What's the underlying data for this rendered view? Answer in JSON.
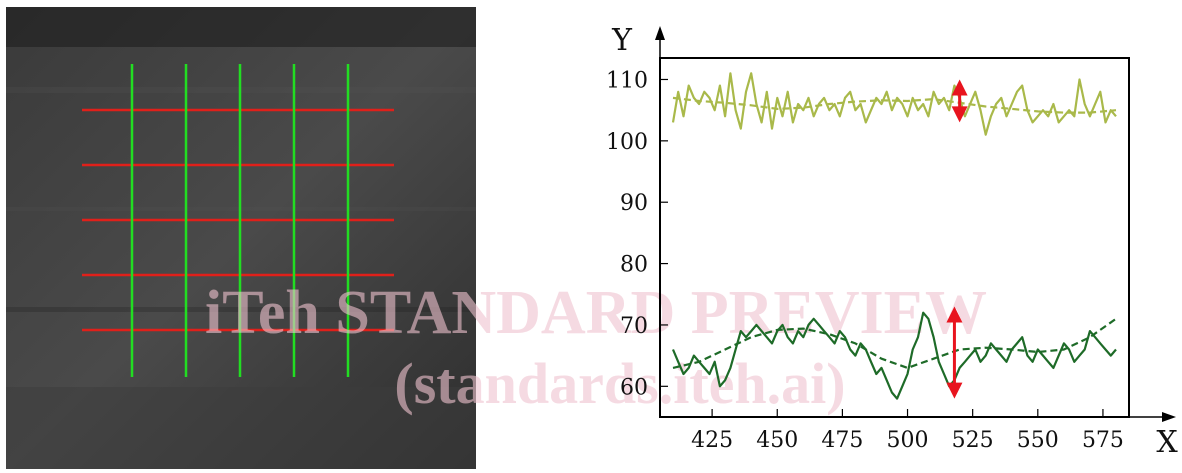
{
  "watermark": {
    "line1": "iTeh STANDARD PREVIEW",
    "line2": "(standards.iteh.ai)"
  },
  "photo": {
    "description_colors": {
      "background": "#2b2b2b",
      "horizontal_lines": "#e0201a",
      "vertical_lines": "#22dd22"
    },
    "horizontal_line_count": 5,
    "vertical_line_count": 5
  },
  "chart_data": {
    "type": "line",
    "xlabel": "X",
    "ylabel": "Y",
    "xlim": [
      405,
      585
    ],
    "ylim": [
      55,
      113.5
    ],
    "xticks": [
      425,
      450,
      475,
      500,
      525,
      550,
      575
    ],
    "yticks": [
      60,
      70,
      80,
      90,
      100,
      110
    ],
    "grid": false,
    "series": [
      {
        "color": "#a9b94a",
        "style": "solid",
        "x": [
          410,
          412,
          414,
          416,
          418,
          420,
          422,
          424,
          426,
          428,
          430,
          432,
          434,
          436,
          438,
          440,
          442,
          444,
          446,
          448,
          450,
          452,
          454,
          456,
          458,
          460,
          462,
          464,
          466,
          468,
          470,
          472,
          474,
          476,
          478,
          480,
          482,
          484,
          486,
          488,
          490,
          492,
          494,
          496,
          498,
          500,
          502,
          504,
          506,
          508,
          510,
          512,
          514,
          516,
          518,
          520,
          522,
          524,
          526,
          528,
          530,
          532,
          534,
          536,
          538,
          540,
          542,
          544,
          546,
          548,
          550,
          552,
          554,
          556,
          558,
          560,
          562,
          564,
          566,
          568,
          570,
          572,
          574,
          576,
          578,
          580
        ],
        "y": [
          103,
          108,
          104,
          109,
          107,
          106,
          108,
          107,
          105,
          109,
          104,
          111,
          105,
          102,
          108,
          111,
          106,
          103,
          108,
          102,
          107,
          104,
          108,
          103,
          106,
          105,
          107,
          104,
          106,
          107,
          105,
          106,
          104,
          107,
          108,
          105,
          106,
          103,
          105,
          107,
          106,
          108,
          105,
          107,
          106,
          104,
          107,
          105,
          106,
          104,
          108,
          106,
          107,
          105,
          109,
          107,
          104,
          106,
          108,
          105,
          101,
          104,
          106,
          107,
          104,
          106,
          108,
          109,
          105,
          103,
          104,
          105,
          104,
          106,
          103,
          104,
          105,
          104,
          110,
          106,
          104,
          106,
          108,
          103,
          105,
          104
        ]
      },
      {
        "color": "#a9b94a",
        "style": "dashed",
        "x": [
          410,
          420,
          430,
          440,
          450,
          460,
          470,
          480,
          490,
          500,
          510,
          520,
          530,
          540,
          550,
          560,
          570,
          580
        ],
        "y": [
          107,
          106.5,
          106.2,
          105.8,
          105.2,
          105.4,
          106,
          106.4,
          106.6,
          106.5,
          106.8,
          106.2,
          105.6,
          105.2,
          104.8,
          104.6,
          104.6,
          105
        ]
      },
      {
        "color": "#1e6b28",
        "style": "solid",
        "x": [
          410,
          412,
          414,
          416,
          418,
          420,
          422,
          424,
          426,
          428,
          430,
          432,
          434,
          436,
          438,
          440,
          442,
          444,
          446,
          448,
          450,
          452,
          454,
          456,
          458,
          460,
          462,
          464,
          466,
          468,
          470,
          472,
          474,
          476,
          478,
          480,
          482,
          484,
          486,
          488,
          490,
          492,
          494,
          496,
          498,
          500,
          502,
          504,
          506,
          508,
          510,
          512,
          514,
          516,
          518,
          520,
          522,
          524,
          526,
          528,
          530,
          532,
          534,
          536,
          538,
          540,
          542,
          544,
          546,
          548,
          550,
          552,
          554,
          556,
          558,
          560,
          562,
          564,
          566,
          568,
          570,
          572,
          574,
          576,
          578,
          580
        ],
        "y": [
          66,
          64,
          62,
          63,
          65,
          64,
          63,
          62,
          64,
          60,
          61,
          63,
          66,
          69,
          68,
          69,
          70,
          69,
          68,
          67,
          69,
          70,
          68,
          67,
          69,
          68,
          70,
          71,
          70,
          69,
          68,
          67,
          69,
          68,
          66,
          65,
          67,
          66,
          64,
          62,
          63,
          61,
          59,
          58,
          60,
          62,
          66,
          68,
          72,
          71,
          68,
          64,
          62,
          60,
          61,
          63,
          64,
          65,
          66,
          64,
          65,
          67,
          66,
          65,
          64,
          66,
          67,
          68,
          65,
          64,
          66,
          65,
          64,
          63,
          65,
          67,
          66,
          64,
          65,
          66,
          69,
          68,
          67,
          66,
          65,
          66
        ]
      },
      {
        "color": "#1e6b28",
        "style": "dashed",
        "x": [
          410,
          420,
          430,
          440,
          450,
          460,
          470,
          480,
          490,
          500,
          510,
          520,
          530,
          540,
          550,
          560,
          570,
          580
        ],
        "y": [
          63,
          64,
          66,
          68,
          69.2,
          69.4,
          68.5,
          67,
          64.5,
          63,
          64.5,
          66,
          66.3,
          66,
          65.6,
          66,
          68,
          71
        ]
      }
    ],
    "annotations": [
      {
        "type": "double-arrow",
        "color": "#e8141e",
        "x": 520,
        "y_from": 103,
        "y_to": 110
      },
      {
        "type": "double-arrow",
        "color": "#e8141e",
        "x": 518,
        "y_from": 58,
        "y_to": 73
      }
    ]
  }
}
